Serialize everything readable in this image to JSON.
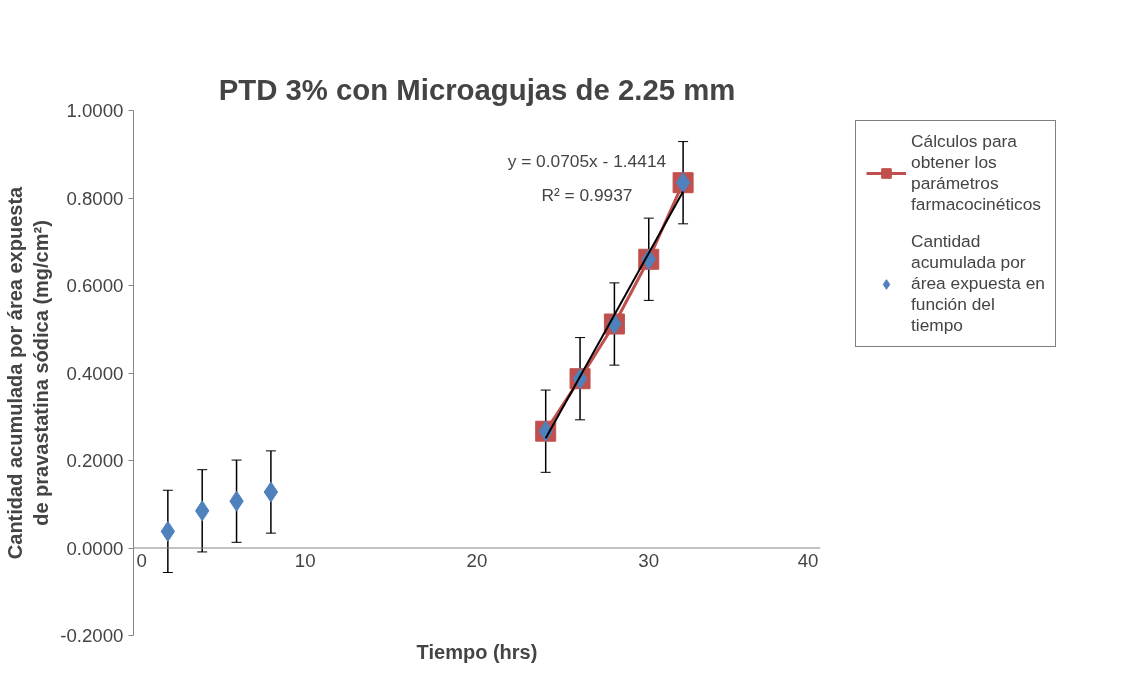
{
  "chart_data": {
    "type": "scatter",
    "title": "PTD 3% con Microagujas de 2.25 mm",
    "xlabel": "Tiempo (hrs)",
    "ylabel": "Cantidad acumulada por área expuesta\nde pravastatina sódica (mg/cm²)",
    "xlim": [
      0,
      40
    ],
    "xticks": [
      0,
      10,
      20,
      30,
      40
    ],
    "ylim": [
      -0.2,
      1.0
    ],
    "yticks": [
      {
        "value": -0.2,
        "label": "-0.2000"
      },
      {
        "value": 0,
        "label": "0.0000"
      },
      {
        "value": 0.2,
        "label": "0.2000"
      },
      {
        "value": 0.4,
        "label": "0.4000"
      },
      {
        "value": 0.6,
        "label": "0.6000"
      },
      {
        "value": 0.8,
        "label": "0.8000"
      },
      {
        "value": 1.0,
        "label": "1.0000"
      }
    ],
    "grid": false,
    "legend": "right",
    "series": [
      {
        "name": "Cálculos para obtener los parámetros farmacocinéticos",
        "type": "line",
        "marker": "square",
        "line_style": "solid",
        "color": "#c0504d",
        "x": [
          24,
          26,
          28,
          30,
          32
        ],
        "values": [
          0.267,
          0.387,
          0.512,
          0.66,
          0.835
        ]
      },
      {
        "name": "Cantidad acumulada por área expuesta en función del tiempo",
        "marker": "diamond",
        "color": "#4f81bd",
        "x": [
          2,
          4,
          6,
          8,
          24,
          26,
          28,
          30,
          32
        ],
        "values": [
          0.038,
          0.085,
          0.107,
          0.128,
          0.267,
          0.387,
          0.512,
          0.66,
          0.835
        ],
        "errors": [
          0.094,
          0.094,
          0.094,
          0.094,
          0.094,
          0.094,
          0.094,
          0.094,
          0.094
        ]
      },
      {
        "type": "line",
        "marker": "none",
        "line_style": "solid",
        "color": "#000000",
        "x": [
          24,
          32
        ],
        "values": [
          0.251,
          0.815
        ]
      }
    ],
    "annotations": [
      "y = 0.0705x - 1.4414",
      "R² = 0.9937"
    ]
  }
}
